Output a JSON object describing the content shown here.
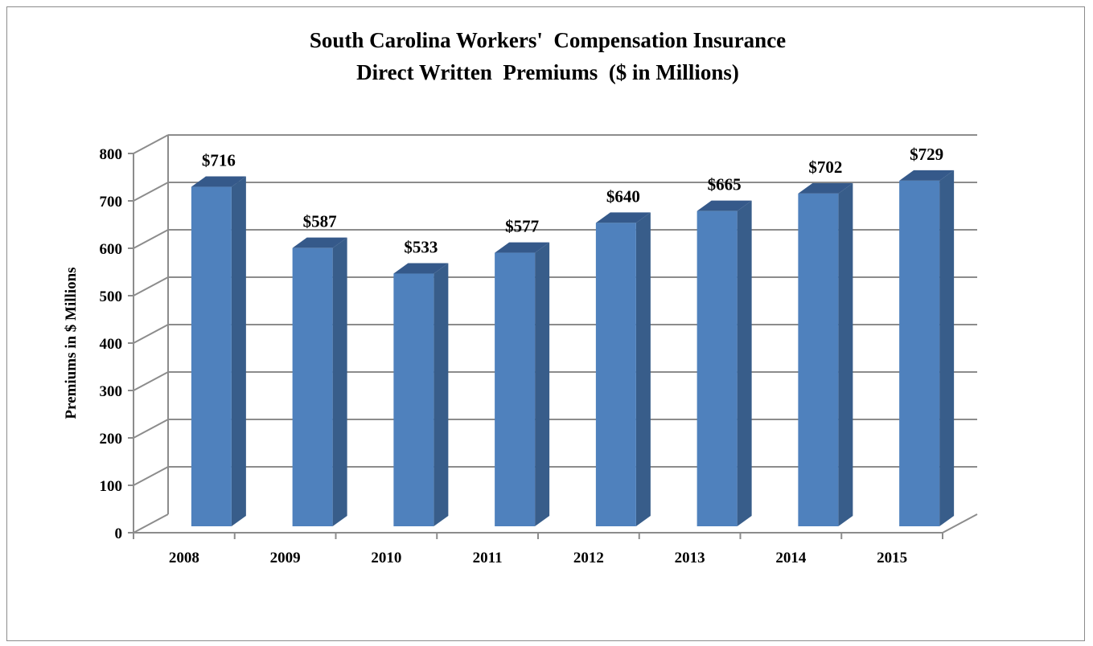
{
  "chart_data": {
    "type": "bar",
    "title": [
      "South Carolina Workers'  Compensation Insurance",
      "Direct Written  Premiums  ($ in Millions)"
    ],
    "xlabel": "",
    "ylabel": "Premiums in $ Millions",
    "categories": [
      "2008",
      "2009",
      "2010",
      "2011",
      "2012",
      "2013",
      "2014",
      "2015"
    ],
    "values": [
      716,
      587,
      533,
      577,
      640,
      665,
      702,
      729
    ],
    "data_labels": [
      "$716",
      "$587",
      "$533",
      "$577",
      "$640",
      "$665",
      "$702",
      "$729"
    ],
    "ylim": [
      0,
      800
    ],
    "y_ticks": [
      "0",
      "100",
      "200",
      "300",
      "400",
      "500",
      "600",
      "700",
      "800"
    ],
    "grid": true,
    "legend": "none",
    "style": "3d-column",
    "colors": {
      "bar_front": "#4f81bd",
      "bar_side": "#385d8a",
      "bar_top": "#35598a",
      "gridline": "#8c8c8c"
    }
  }
}
